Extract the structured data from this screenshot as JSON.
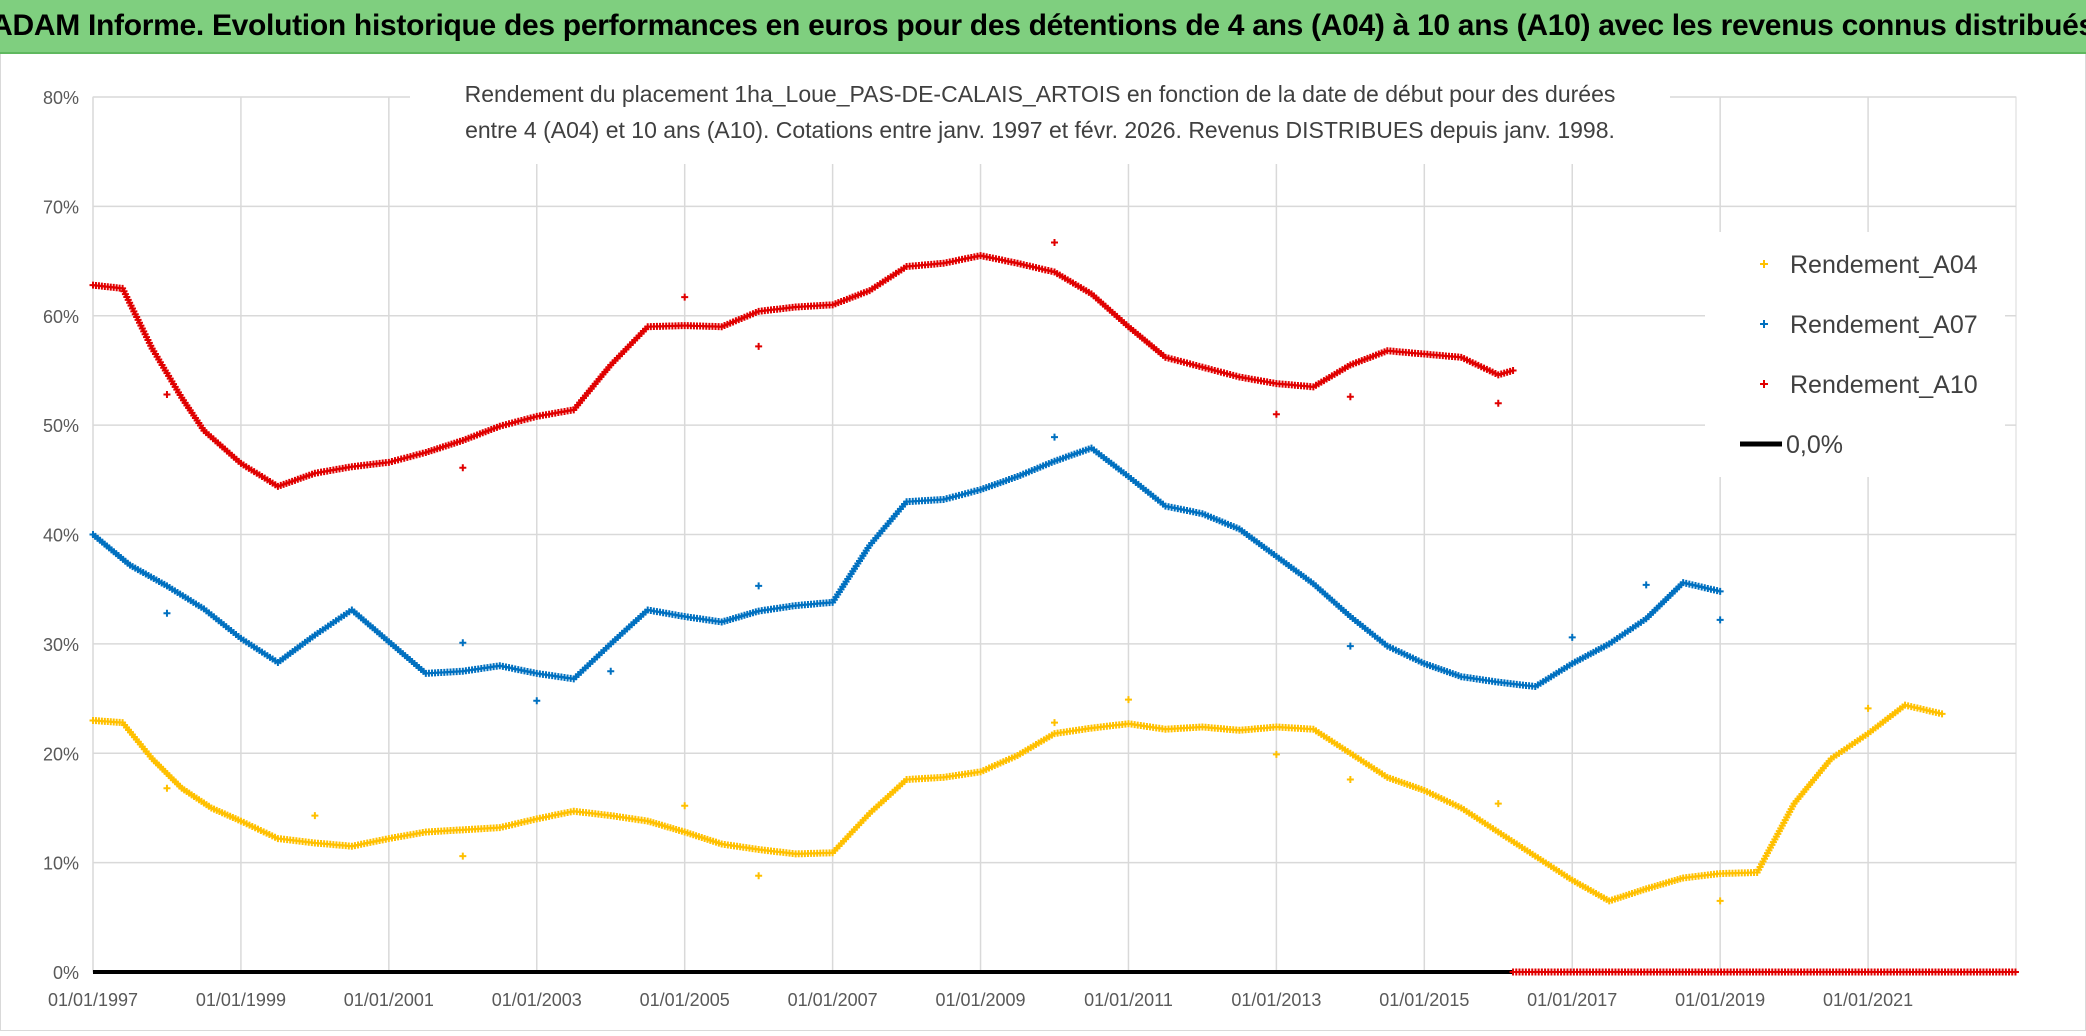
{
  "header": {
    "title": "ADAM Informe. Evolution historique des performances en euros pour des détentions de 4 ans (A04) à 10 ans (A10) avec les revenus connus distribués"
  },
  "chart_data": {
    "type": "scatter",
    "title_line1": "Rendement du placement 1ha_Loue_PAS-DE-CALAIS_ARTOIS en fonction de la date de début pour des durées",
    "title_line2": "entre 4 (A04) et 10 ans (A10). Cotations entre janv. 1997 et févr. 2026. Revenus DISTRIBUES depuis janv. 1998.",
    "xlabel": "",
    "ylabel": "",
    "xlim": [
      1997.0,
      2023.0
    ],
    "ylim": [
      0,
      80
    ],
    "x_ticks": [
      1997,
      1999,
      2001,
      2003,
      2005,
      2007,
      2009,
      2011,
      2013,
      2015,
      2017,
      2019,
      2021
    ],
    "x_tick_labels": [
      "01/01/1997",
      "01/01/1999",
      "01/01/2001",
      "01/01/2003",
      "01/01/2005",
      "01/01/2007",
      "01/01/2009",
      "01/01/2011",
      "01/01/2013",
      "01/01/2015",
      "01/01/2017",
      "01/01/2019",
      "01/01/2021"
    ],
    "y_ticks": [
      0,
      10,
      20,
      30,
      40,
      50,
      60,
      70,
      80
    ],
    "y_tick_labels": [
      "0%",
      "10%",
      "20%",
      "30%",
      "40%",
      "50%",
      "60%",
      "70%",
      "80%"
    ],
    "grid": true,
    "legend_position": "top-right",
    "series": [
      {
        "name": "Rendement_A04",
        "color": "#ffc000",
        "marker": "plus",
        "points": [
          [
            1997.0,
            23
          ],
          [
            1997.4,
            22.8
          ],
          [
            1997.8,
            19.5
          ],
          [
            1998.2,
            16.8
          ],
          [
            1998.6,
            15
          ],
          [
            1999.0,
            13.8
          ],
          [
            1999.5,
            12.2
          ],
          [
            2000.0,
            11.8
          ],
          [
            2000.5,
            11.5
          ],
          [
            2001.0,
            12.2
          ],
          [
            2001.5,
            12.8
          ],
          [
            2002.0,
            13
          ],
          [
            2002.5,
            13.2
          ],
          [
            2003.0,
            14
          ],
          [
            2003.5,
            14.7
          ],
          [
            2004.0,
            14.3
          ],
          [
            2004.5,
            13.8
          ],
          [
            2005.0,
            12.8
          ],
          [
            2005.5,
            11.7
          ],
          [
            2006.0,
            11.2
          ],
          [
            2006.5,
            10.8
          ],
          [
            2007.0,
            10.9
          ],
          [
            2007.5,
            14.5
          ],
          [
            2008.0,
            17.6
          ],
          [
            2008.5,
            17.8
          ],
          [
            2009.0,
            18.3
          ],
          [
            2009.5,
            19.8
          ],
          [
            2010.0,
            21.8
          ],
          [
            2010.5,
            22.3
          ],
          [
            2011.0,
            22.7
          ],
          [
            2011.5,
            22.2
          ],
          [
            2012.0,
            22.4
          ],
          [
            2012.5,
            22.1
          ],
          [
            2013.0,
            22.4
          ],
          [
            2013.5,
            22.2
          ],
          [
            2014.0,
            20
          ],
          [
            2014.5,
            17.8
          ],
          [
            2015.0,
            16.6
          ],
          [
            2015.5,
            15
          ],
          [
            2016.0,
            12.8
          ],
          [
            2016.5,
            10.6
          ],
          [
            2017.0,
            8.4
          ],
          [
            2017.5,
            6.5
          ],
          [
            2018.0,
            7.6
          ],
          [
            2018.5,
            8.6
          ],
          [
            2019.0,
            9
          ],
          [
            2019.5,
            9.1
          ],
          [
            2020.0,
            15.4
          ],
          [
            2020.5,
            19.5
          ],
          [
            2021.0,
            21.8
          ],
          [
            2021.5,
            24.4
          ],
          [
            2022.0,
            23.6
          ]
        ],
        "outliers": [
          [
            1998.0,
            16.8
          ],
          [
            2000.0,
            14.3
          ],
          [
            2002.0,
            10.6
          ],
          [
            2005.0,
            15.2
          ],
          [
            2006.0,
            8.8
          ],
          [
            2010.0,
            22.8
          ],
          [
            2011.0,
            24.9
          ],
          [
            2013.0,
            19.9
          ],
          [
            2014.0,
            17.6
          ],
          [
            2016.0,
            15.4
          ],
          [
            2019.0,
            6.5
          ],
          [
            2021.0,
            24.1
          ]
        ]
      },
      {
        "name": "Rendement_A07",
        "color": "#0070c0",
        "marker": "plus",
        "points": [
          [
            1997.0,
            40
          ],
          [
            1997.5,
            37.2
          ],
          [
            1998.0,
            35.3
          ],
          [
            1998.5,
            33.2
          ],
          [
            1999.0,
            30.5
          ],
          [
            1999.5,
            28.3
          ],
          [
            2000.0,
            30.8
          ],
          [
            2000.5,
            33.1
          ],
          [
            2001.0,
            30.2
          ],
          [
            2001.5,
            27.3
          ],
          [
            2002.0,
            27.5
          ],
          [
            2002.5,
            28
          ],
          [
            2003.0,
            27.3
          ],
          [
            2003.5,
            26.8
          ],
          [
            2004.0,
            30
          ],
          [
            2004.5,
            33.1
          ],
          [
            2005.0,
            32.5
          ],
          [
            2005.5,
            32
          ],
          [
            2006.0,
            33
          ],
          [
            2006.5,
            33.5
          ],
          [
            2007.0,
            33.8
          ],
          [
            2007.5,
            39
          ],
          [
            2008.0,
            43
          ],
          [
            2008.5,
            43.2
          ],
          [
            2009.0,
            44.1
          ],
          [
            2009.5,
            45.3
          ],
          [
            2010.0,
            46.7
          ],
          [
            2010.5,
            47.9
          ],
          [
            2011.0,
            45.3
          ],
          [
            2011.5,
            42.6
          ],
          [
            2012.0,
            41.9
          ],
          [
            2012.5,
            40.5
          ],
          [
            2013.0,
            38
          ],
          [
            2013.5,
            35.5
          ],
          [
            2014.0,
            32.5
          ],
          [
            2014.5,
            29.8
          ],
          [
            2015.0,
            28.2
          ],
          [
            2015.5,
            27
          ],
          [
            2016.0,
            26.5
          ],
          [
            2016.5,
            26.1
          ],
          [
            2017.0,
            28.2
          ],
          [
            2017.5,
            30
          ],
          [
            2018.0,
            32.3
          ],
          [
            2018.5,
            35.6
          ],
          [
            2019.0,
            34.8
          ]
        ],
        "outliers": [
          [
            1998.0,
            32.8
          ],
          [
            2002.0,
            30.1
          ],
          [
            2003.0,
            24.8
          ],
          [
            2004.0,
            27.5
          ],
          [
            2006.0,
            35.3
          ],
          [
            2010.0,
            48.9
          ],
          [
            2014.0,
            29.8
          ],
          [
            2017.0,
            30.6
          ],
          [
            2018.0,
            35.4
          ],
          [
            2019.0,
            32.2
          ]
        ]
      },
      {
        "name": "Rendement_A10",
        "color": "#e00000",
        "marker": "plus",
        "points": [
          [
            1997.0,
            62.8
          ],
          [
            1997.4,
            62.5
          ],
          [
            1997.8,
            57
          ],
          [
            1998.2,
            52.5
          ],
          [
            1998.5,
            49.5
          ],
          [
            1999.0,
            46.5
          ],
          [
            1999.5,
            44.4
          ],
          [
            2000.0,
            45.6
          ],
          [
            2000.5,
            46.2
          ],
          [
            2001.0,
            46.6
          ],
          [
            2001.5,
            47.5
          ],
          [
            2002.0,
            48.6
          ],
          [
            2002.5,
            49.9
          ],
          [
            2003.0,
            50.8
          ],
          [
            2003.5,
            51.4
          ],
          [
            2004.0,
            55.5
          ],
          [
            2004.5,
            59
          ],
          [
            2005.0,
            59.1
          ],
          [
            2005.5,
            59
          ],
          [
            2006.0,
            60.4
          ],
          [
            2006.5,
            60.8
          ],
          [
            2007.0,
            61
          ],
          [
            2007.5,
            62.3
          ],
          [
            2008.0,
            64.5
          ],
          [
            2008.5,
            64.8
          ],
          [
            2009.0,
            65.5
          ],
          [
            2009.5,
            64.8
          ],
          [
            2010.0,
            64
          ],
          [
            2010.5,
            62
          ],
          [
            2011.0,
            59
          ],
          [
            2011.5,
            56.2
          ],
          [
            2012.0,
            55.3
          ],
          [
            2012.5,
            54.4
          ],
          [
            2013.0,
            53.8
          ],
          [
            2013.5,
            53.5
          ],
          [
            2014.0,
            55.5
          ],
          [
            2014.5,
            56.8
          ],
          [
            2015.0,
            56.5
          ],
          [
            2015.5,
            56.2
          ],
          [
            2016.0,
            54.6
          ],
          [
            2016.2,
            55
          ]
        ],
        "outliers": [
          [
            1998.0,
            52.8
          ],
          [
            2002.0,
            46.1
          ],
          [
            2005.0,
            61.7
          ],
          [
            2006.0,
            57.2
          ],
          [
            2010.0,
            66.7
          ],
          [
            2013.0,
            51
          ],
          [
            2014.0,
            52.6
          ],
          [
            2016.0,
            52
          ]
        ]
      },
      {
        "name": "0,0%",
        "color": "#000000",
        "marker": "line",
        "points": [
          [
            1997.0,
            0
          ],
          [
            2016.2,
            0
          ]
        ]
      }
    ],
    "extra_series_red_zero": {
      "from": 2016.2,
      "to": 2023.0,
      "value": 0
    }
  }
}
